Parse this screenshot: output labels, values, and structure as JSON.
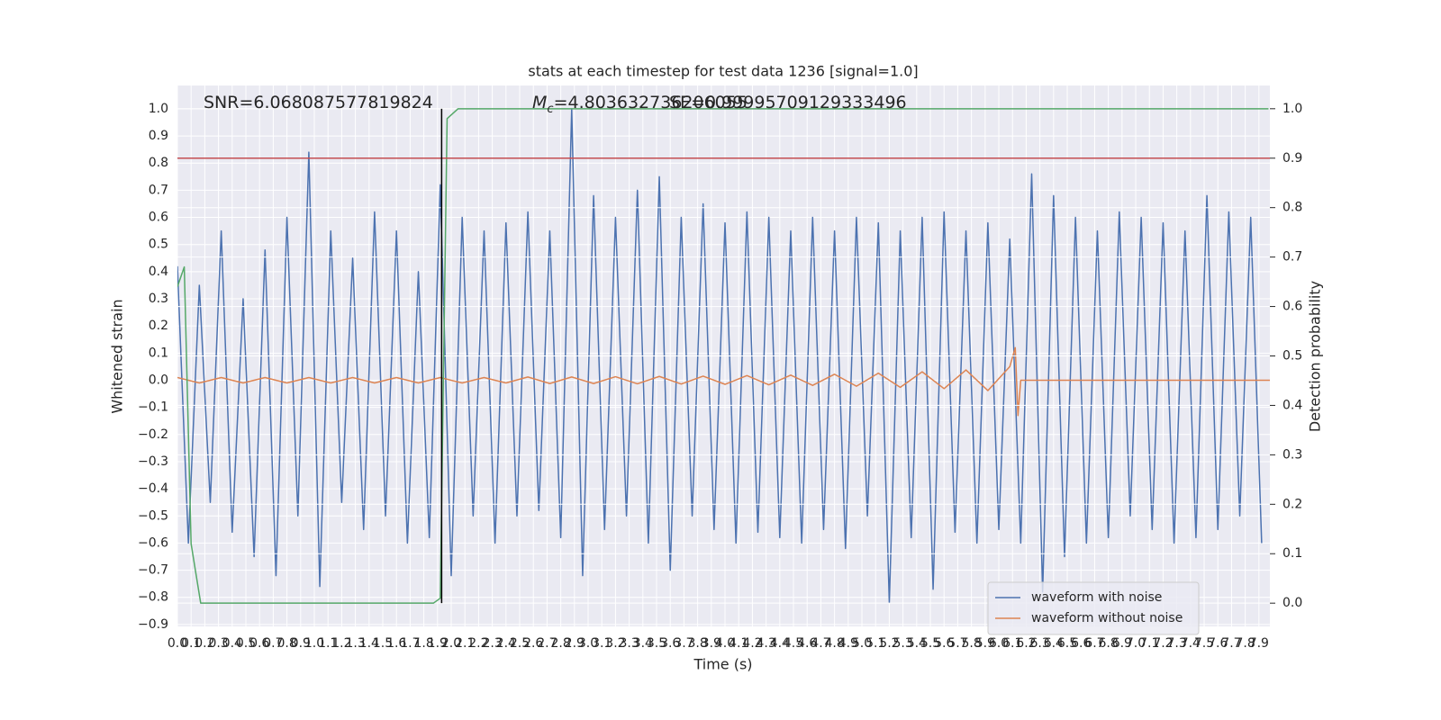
{
  "chart_data": {
    "type": "line",
    "title": "stats at each timestep for test data 1236 [signal=1.0]",
    "xlabel": "Time (s)",
    "ylabel": "Whitened strain",
    "y2label": "Detection probability",
    "xlim": [
      0,
      7.98
    ],
    "ylim": [
      -0.907,
      1.086
    ],
    "y2lim": [
      -0.047,
      1.047
    ],
    "grid": true,
    "legend": "lower right",
    "xticks": [
      {
        "value": 0,
        "label": "0.0"
      },
      {
        "value": 0.1,
        "label": "0.1"
      },
      {
        "value": 0.2,
        "label": "0.2"
      },
      {
        "value": 0.3,
        "label": "0.3"
      },
      {
        "value": 0.4,
        "label": "0.4"
      },
      {
        "value": 0.5,
        "label": "0.5"
      },
      {
        "value": 0.6,
        "label": "0.6"
      },
      {
        "value": 0.7,
        "label": "0.7"
      },
      {
        "value": 0.8,
        "label": "0.8"
      },
      {
        "value": 0.9,
        "label": "0.9"
      },
      {
        "value": 1,
        "label": "1.0"
      },
      {
        "value": 1.1,
        "label": "1.1"
      },
      {
        "value": 1.2,
        "label": "1.2"
      },
      {
        "value": 1.3,
        "label": "1.3"
      },
      {
        "value": 1.4,
        "label": "1.4"
      },
      {
        "value": 1.5,
        "label": "1.5"
      },
      {
        "value": 1.6,
        "label": "1.6"
      },
      {
        "value": 1.7,
        "label": "1.7"
      },
      {
        "value": 1.8,
        "label": "1.8"
      },
      {
        "value": 1.9,
        "label": "1.9"
      },
      {
        "value": 2,
        "label": "2.0"
      },
      {
        "value": 2.1,
        "label": "2.1"
      },
      {
        "value": 2.2,
        "label": "2.2"
      },
      {
        "value": 2.3,
        "label": "2.3"
      },
      {
        "value": 2.4,
        "label": "2.4"
      },
      {
        "value": 2.5,
        "label": "2.5"
      },
      {
        "value": 2.6,
        "label": "2.6"
      },
      {
        "value": 2.7,
        "label": "2.7"
      },
      {
        "value": 2.8,
        "label": "2.8"
      },
      {
        "value": 2.9,
        "label": "2.9"
      },
      {
        "value": 3,
        "label": "3.0"
      },
      {
        "value": 3.1,
        "label": "3.1"
      },
      {
        "value": 3.2,
        "label": "3.2"
      },
      {
        "value": 3.3,
        "label": "3.3"
      },
      {
        "value": 3.4,
        "label": "3.4"
      },
      {
        "value": 3.5,
        "label": "3.5"
      },
      {
        "value": 3.6,
        "label": "3.6"
      },
      {
        "value": 3.7,
        "label": "3.7"
      },
      {
        "value": 3.8,
        "label": "3.8"
      },
      {
        "value": 3.9,
        "label": "3.9"
      },
      {
        "value": 4,
        "label": "4.0"
      },
      {
        "value": 4.1,
        "label": "4.1"
      },
      {
        "value": 4.2,
        "label": "4.2"
      },
      {
        "value": 4.3,
        "label": "4.3"
      },
      {
        "value": 4.4,
        "label": "4.4"
      },
      {
        "value": 4.5,
        "label": "4.5"
      },
      {
        "value": 4.6,
        "label": "4.6"
      },
      {
        "value": 4.7,
        "label": "4.7"
      },
      {
        "value": 4.8,
        "label": "4.8"
      },
      {
        "value": 4.9,
        "label": "4.9"
      },
      {
        "value": 5,
        "label": "5.0"
      },
      {
        "value": 5.1,
        "label": "5.1"
      },
      {
        "value": 5.2,
        "label": "5.2"
      },
      {
        "value": 5.3,
        "label": "5.3"
      },
      {
        "value": 5.4,
        "label": "5.4"
      },
      {
        "value": 5.5,
        "label": "5.5"
      },
      {
        "value": 5.6,
        "label": "5.6"
      },
      {
        "value": 5.7,
        "label": "5.7"
      },
      {
        "value": 5.8,
        "label": "5.8"
      },
      {
        "value": 5.9,
        "label": "5.9"
      },
      {
        "value": 6,
        "label": "6.0"
      },
      {
        "value": 6.1,
        "label": "6.1"
      },
      {
        "value": 6.2,
        "label": "6.2"
      },
      {
        "value": 6.3,
        "label": "6.3"
      },
      {
        "value": 6.4,
        "label": "6.4"
      },
      {
        "value": 6.5,
        "label": "6.5"
      },
      {
        "value": 6.6,
        "label": "6.6"
      },
      {
        "value": 6.7,
        "label": "6.7"
      },
      {
        "value": 6.8,
        "label": "6.8"
      },
      {
        "value": 6.9,
        "label": "6.9"
      },
      {
        "value": 7,
        "label": "7.0"
      },
      {
        "value": 7.1,
        "label": "7.1"
      },
      {
        "value": 7.2,
        "label": "7.2"
      },
      {
        "value": 7.3,
        "label": "7.3"
      },
      {
        "value": 7.4,
        "label": "7.4"
      },
      {
        "value": 7.5,
        "label": "7.5"
      },
      {
        "value": 7.6,
        "label": "7.6"
      },
      {
        "value": 7.7,
        "label": "7.7"
      },
      {
        "value": 7.8,
        "label": "7.8"
      },
      {
        "value": 7.9,
        "label": "7.9"
      }
    ],
    "yticks": [
      {
        "value": -0.9,
        "label": "−0.9"
      },
      {
        "value": -0.8,
        "label": "−0.8"
      },
      {
        "value": -0.7,
        "label": "−0.7"
      },
      {
        "value": -0.6,
        "label": "−0.6"
      },
      {
        "value": -0.5,
        "label": "−0.5"
      },
      {
        "value": -0.4,
        "label": "−0.4"
      },
      {
        "value": -0.3,
        "label": "−0.3"
      },
      {
        "value": -0.2,
        "label": "−0.2"
      },
      {
        "value": -0.1,
        "label": "−0.1"
      },
      {
        "value": 0,
        "label": "0.0"
      },
      0.1,
      0.2,
      0.3,
      0.4,
      0.5,
      0.6,
      0.7,
      0.8,
      0.9,
      {
        "value": 1,
        "label": "1.0"
      }
    ],
    "y2ticks": [
      {
        "value": 0,
        "label": "0.0"
      },
      0.1,
      0.2,
      0.3,
      0.4,
      0.5,
      0.6,
      0.7,
      0.8,
      0.9,
      {
        "value": 1,
        "label": "1.0"
      }
    ],
    "series": [
      {
        "name": "waveform with noise",
        "color": "#4c72b0",
        "x": [
          0,
          0.08,
          0.16,
          0.24,
          0.32,
          0.4,
          0.48,
          0.56,
          0.64,
          0.72,
          0.8,
          0.88,
          0.96,
          1.04,
          1.12,
          1.2,
          1.28,
          1.36,
          1.44,
          1.52,
          1.6,
          1.68,
          1.76,
          1.84,
          1.92,
          2.0,
          2.08,
          2.16,
          2.24,
          2.32,
          2.4,
          2.48,
          2.56,
          2.64,
          2.72,
          2.8,
          2.88,
          2.96,
          3.04,
          3.12,
          3.2,
          3.28,
          3.36,
          3.44,
          3.52,
          3.6,
          3.68,
          3.76,
          3.84,
          3.92,
          4.0,
          4.08,
          4.16,
          4.24,
          4.32,
          4.4,
          4.48,
          4.56,
          4.64,
          4.72,
          4.8,
          4.88,
          4.96,
          5.04,
          5.12,
          5.2,
          5.28,
          5.36,
          5.44,
          5.52,
          5.6,
          5.68,
          5.76,
          5.84,
          5.92,
          6.0,
          6.08,
          6.16,
          6.24,
          6.32,
          6.4,
          6.48,
          6.56,
          6.64,
          6.72,
          6.8,
          6.88,
          6.96,
          7.04,
          7.12,
          7.2,
          7.28,
          7.36,
          7.44,
          7.52,
          7.6,
          7.68,
          7.76,
          7.84,
          7.92
        ],
        "values": [
          0.42,
          -0.6,
          0.35,
          -0.45,
          0.55,
          -0.56,
          0.3,
          -0.65,
          0.48,
          -0.72,
          0.6,
          -0.5,
          0.84,
          -0.76,
          0.55,
          -0.45,
          0.45,
          -0.55,
          0.62,
          -0.5,
          0.55,
          -0.6,
          0.4,
          -0.58,
          0.72,
          -0.72,
          0.6,
          -0.5,
          0.55,
          -0.6,
          0.58,
          -0.5,
          0.62,
          -0.48,
          0.55,
          -0.58,
          1.0,
          -0.72,
          0.68,
          -0.55,
          0.6,
          -0.5,
          0.7,
          -0.6,
          0.75,
          -0.7,
          0.6,
          -0.5,
          0.65,
          -0.55,
          0.58,
          -0.6,
          0.62,
          -0.56,
          0.6,
          -0.58,
          0.55,
          -0.6,
          0.6,
          -0.55,
          0.55,
          -0.62,
          0.6,
          -0.5,
          0.58,
          -0.82,
          0.55,
          -0.58,
          0.6,
          -0.77,
          0.62,
          -0.56,
          0.55,
          -0.6,
          0.58,
          -0.55,
          0.52,
          -0.6,
          0.76,
          -0.78,
          0.68,
          -0.65,
          0.6,
          -0.6,
          0.55,
          -0.58,
          0.62,
          -0.5,
          0.6,
          -0.55,
          0.58,
          -0.6,
          0.55,
          -0.58,
          0.68,
          -0.55,
          0.62,
          -0.5,
          0.6,
          -0.6
        ]
      },
      {
        "name": "waveform without noise",
        "color": "#dd8452",
        "x": [
          0,
          0.16,
          0.32,
          0.48,
          0.64,
          0.8,
          0.96,
          1.12,
          1.28,
          1.44,
          1.6,
          1.76,
          1.92,
          2.08,
          2.24,
          2.4,
          2.56,
          2.72,
          2.88,
          3.04,
          3.2,
          3.36,
          3.52,
          3.68,
          3.84,
          4.0,
          4.16,
          4.32,
          4.48,
          4.64,
          4.8,
          4.96,
          5.12,
          5.28,
          5.44,
          5.6,
          5.76,
          5.92,
          6.08,
          6.12,
          6.14,
          6.16,
          7.98
        ],
        "values": [
          0.01,
          -0.01,
          0.01,
          -0.01,
          0.01,
          -0.01,
          0.01,
          -0.01,
          0.01,
          -0.01,
          0.01,
          -0.01,
          0.01,
          -0.01,
          0.01,
          -0.01,
          0.012,
          -0.012,
          0.012,
          -0.012,
          0.013,
          -0.013,
          0.014,
          -0.014,
          0.015,
          -0.015,
          0.017,
          -0.017,
          0.019,
          -0.019,
          0.022,
          -0.022,
          0.026,
          -0.026,
          0.031,
          -0.031,
          0.038,
          -0.038,
          0.05,
          0.12,
          -0.13,
          0,
          0
        ]
      },
      {
        "color": "#55a868",
        "axis": "y2",
        "x": [
          0,
          0.05,
          0.1,
          0.17,
          1.87,
          1.92,
          1.97,
          2.05,
          7.97
        ],
        "values": [
          0.64,
          0.68,
          0.12,
          0,
          0,
          0.01,
          0.98,
          1.0,
          1.0
        ]
      }
    ],
    "hline": {
      "y": 0.9,
      "axis": "y2",
      "color": "#c44e52"
    },
    "vline": {
      "x": 1.93,
      "ymin": 0,
      "ymax": 1,
      "axis": "y2",
      "color": "#000000"
    },
    "annotations": [
      {
        "text": "SNR=6.068087577819824"
      },
      {
        "symbol": "M",
        "subscript": "c",
        "text": "=4.803632736206055"
      },
      {
        "text": "SE=0.99995709129333496"
      }
    ]
  }
}
